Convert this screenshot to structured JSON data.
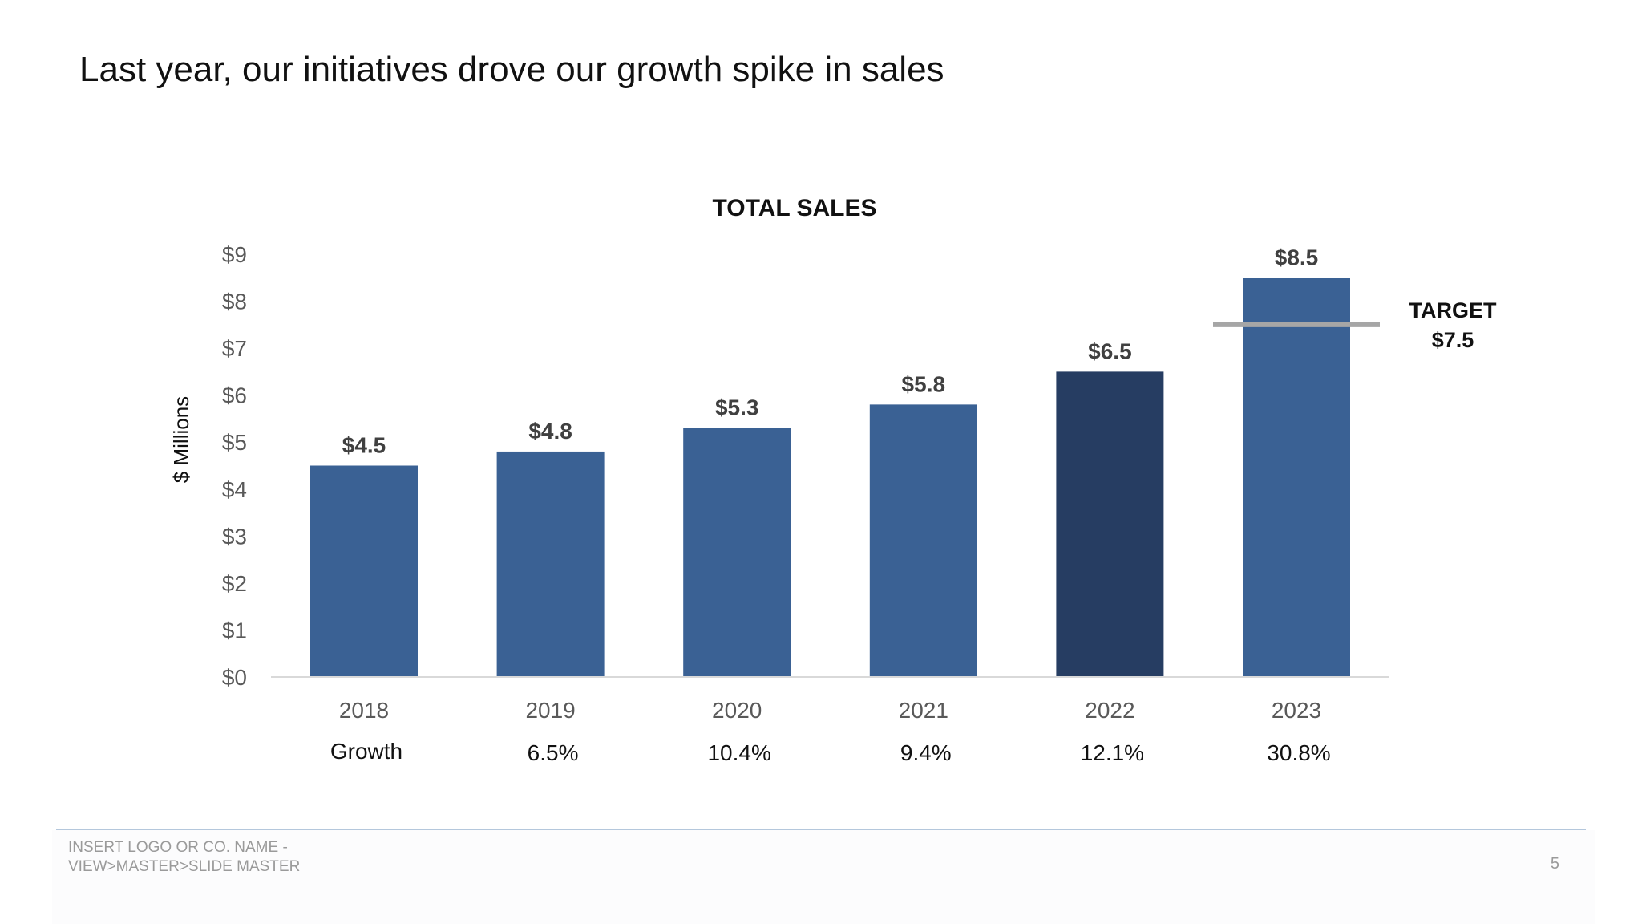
{
  "slide": {
    "title": "Last year, our initiatives drove our growth spike in sales",
    "footer_line1": "INSERT LOGO OR CO. NAME -",
    "footer_line2": "VIEW>MASTER>SLIDE MASTER",
    "page_number": "5"
  },
  "chart_data": {
    "type": "bar",
    "title": "TOTAL SALES",
    "ylabel": "$ Millions",
    "xlabel": "",
    "categories": [
      "2018",
      "2019",
      "2020",
      "2021",
      "2022",
      "2023"
    ],
    "values": [
      4.5,
      4.8,
      5.3,
      5.8,
      6.5,
      8.5
    ],
    "data_labels": [
      "$4.5",
      "$4.8",
      "$5.3",
      "$5.8",
      "$6.5",
      "$8.5"
    ],
    "ylim": [
      0,
      9
    ],
    "yticks": [
      0,
      1,
      2,
      3,
      4,
      5,
      6,
      7,
      8,
      9
    ],
    "ytick_labels": [
      "$0",
      "$1",
      "$2",
      "$3",
      "$4",
      "$5",
      "$6",
      "$7",
      "$8",
      "$9"
    ],
    "grid": false,
    "bar_color": "#3a6194",
    "highlight_index": 4,
    "highlight_color": "#263d62",
    "target": {
      "value": 7.5,
      "label_line1": "TARGET",
      "label_line2": "$7.5",
      "color": "#a6a6a6",
      "applies_to_index": 5
    },
    "growth_row_label": "Growth",
    "growth": [
      "6.5%",
      "10.4%",
      "9.4%",
      "12.1%",
      "30.8%"
    ]
  }
}
